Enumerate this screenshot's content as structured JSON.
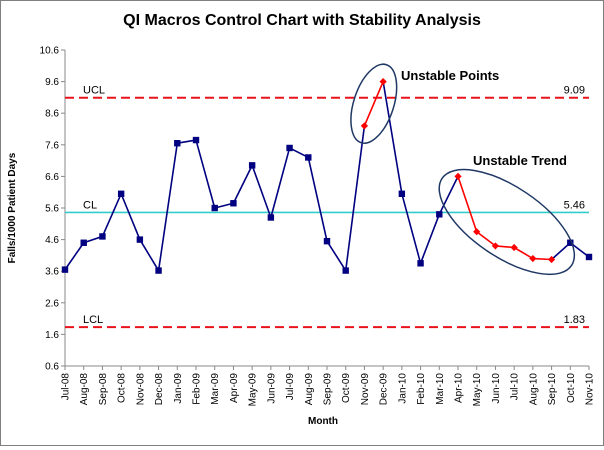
{
  "chart_data": {
    "type": "line",
    "title": "QI Macros Control Chart with Stability Analysis",
    "xlabel": "Month",
    "ylabel": "Falls/1000  Patient Days",
    "ylim": [
      0.6,
      10.6
    ],
    "yticks": [
      "0.6",
      "1.6",
      "2.6",
      "3.6",
      "4.6",
      "5.6",
      "6.6",
      "7.6",
      "8.6",
      "9.6",
      "10.6"
    ],
    "categories": [
      "Jul-08",
      "Aug-08",
      "Sep-08",
      "Oct-08",
      "Nov-08",
      "Dec-08",
      "Jan-09",
      "Feb-09",
      "Mar-09",
      "Apr-09",
      "May-09",
      "Jun-09",
      "Jul-09",
      "Aug-09",
      "Sep-09",
      "Oct-09",
      "Nov-09",
      "Dec-09",
      "Jan-10",
      "Feb-10",
      "Mar-10",
      "Apr-10",
      "May-10",
      "Jun-10",
      "Jul-10",
      "Aug-10",
      "Sep-10",
      "Oct-10",
      "Nov-10"
    ],
    "values": [
      3.65,
      4.5,
      4.7,
      6.05,
      4.6,
      3.62,
      7.65,
      7.75,
      5.6,
      5.75,
      6.95,
      5.3,
      7.5,
      7.2,
      4.55,
      3.62,
      8.2,
      9.6,
      6.05,
      3.85,
      5.4,
      6.6,
      4.85,
      4.4,
      4.35,
      4.0,
      3.97,
      4.5,
      4.05
    ],
    "unstable_indices": [
      16,
      17,
      21,
      22,
      23,
      24,
      25,
      26
    ],
    "control_lines": [
      {
        "label": "UCL",
        "value": 9.09,
        "value_text": "9.09",
        "color": "#e8141c"
      },
      {
        "label": "CL",
        "value": 5.46,
        "value_text": "5.46",
        "color": "#33cccc"
      },
      {
        "label": "LCL",
        "value": 1.83,
        "value_text": "1.83",
        "color": "#e8141c"
      }
    ],
    "annotations": [
      {
        "text": "Unstable Points"
      },
      {
        "text": "Unstable Trend"
      }
    ],
    "colors": {
      "series": "#000080",
      "unstable": "#ff0000",
      "ellipse": "#1f3864"
    },
    "grid": false
  }
}
